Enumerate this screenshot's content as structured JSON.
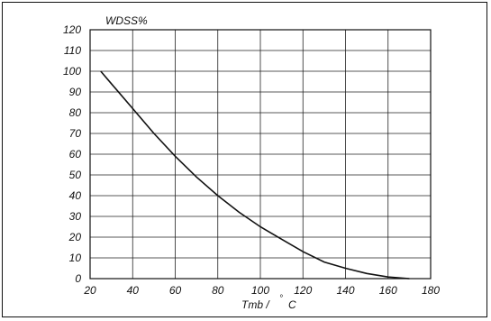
{
  "chart_data": {
    "type": "line",
    "ylabel": "WDSS%",
    "xlabel": "Tmb / ° C",
    "xlabel_main": "Tmb /",
    "xlabel_deg": "°",
    "xlabel_unit": "C",
    "xlim": [
      20,
      180
    ],
    "ylim": [
      0,
      120
    ],
    "xticks": [
      20,
      40,
      60,
      80,
      100,
      120,
      140,
      160,
      180
    ],
    "yticks": [
      0,
      10,
      20,
      30,
      40,
      50,
      60,
      70,
      80,
      90,
      100,
      110,
      120
    ],
    "grid": true,
    "series": [
      {
        "x": [
          25,
          30,
          40,
          50,
          60,
          70,
          80,
          90,
          100,
          110,
          120,
          130,
          140,
          150,
          160,
          170
        ],
        "y": [
          100,
          94,
          82,
          70,
          59,
          49,
          40,
          32,
          25,
          19,
          13,
          8,
          5,
          2.5,
          0.8,
          0
        ],
        "color": "#111111"
      }
    ]
  }
}
